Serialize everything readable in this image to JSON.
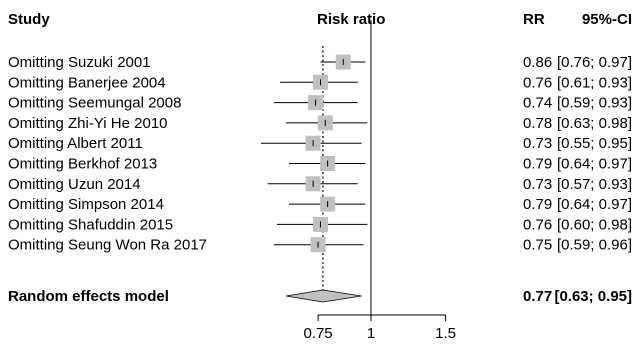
{
  "chart_data": {
    "type": "forest",
    "headers": {
      "study": "Study",
      "effect": "Risk ratio",
      "rr": "RR",
      "ci": "95%-CI"
    },
    "studies": [
      {
        "label": "Omitting Suzuki 2001",
        "rr": 0.86,
        "lower": 0.76,
        "upper": 0.97,
        "rr_text": "0.86",
        "ci_text": "[0.76; 0.97]"
      },
      {
        "label": "Omitting Banerjee 2004",
        "rr": 0.76,
        "lower": 0.61,
        "upper": 0.93,
        "rr_text": "0.76",
        "ci_text": "[0.61; 0.93]"
      },
      {
        "label": "Omitting Seemungal 2008",
        "rr": 0.74,
        "lower": 0.59,
        "upper": 0.93,
        "rr_text": "0.74",
        "ci_text": "[0.59; 0.93]"
      },
      {
        "label": "Omitting Zhi-Yi He 2010",
        "rr": 0.78,
        "lower": 0.63,
        "upper": 0.98,
        "rr_text": "0.78",
        "ci_text": "[0.63; 0.98]"
      },
      {
        "label": "Omitting Albert 2011",
        "rr": 0.73,
        "lower": 0.55,
        "upper": 0.95,
        "rr_text": "0.73",
        "ci_text": "[0.55; 0.95]"
      },
      {
        "label": "Omitting Berkhof 2013",
        "rr": 0.79,
        "lower": 0.64,
        "upper": 0.97,
        "rr_text": "0.79",
        "ci_text": "[0.64; 0.97]"
      },
      {
        "label": "Omitting Uzun 2014",
        "rr": 0.73,
        "lower": 0.57,
        "upper": 0.93,
        "rr_text": "0.73",
        "ci_text": "[0.57; 0.93]"
      },
      {
        "label": "Omitting Simpson 2014",
        "rr": 0.79,
        "lower": 0.64,
        "upper": 0.97,
        "rr_text": "0.79",
        "ci_text": "[0.64; 0.97]"
      },
      {
        "label": "Omitting Shafuddin 2015",
        "rr": 0.76,
        "lower": 0.6,
        "upper": 0.98,
        "rr_text": "0.76",
        "ci_text": "[0.60; 0.98]"
      },
      {
        "label": "Omitting Seung Won Ra 2017",
        "rr": 0.75,
        "lower": 0.59,
        "upper": 0.96,
        "rr_text": "0.75",
        "ci_text": "[0.59; 0.96]"
      }
    ],
    "pooled": {
      "label": "Random effects model",
      "rr": 0.77,
      "lower": 0.63,
      "upper": 0.95,
      "rr_text": "0.77",
      "ci_text": "[0.63; 0.95]"
    },
    "x_axis": {
      "scale": "log",
      "ticks": [
        0.75,
        1,
        1.5
      ],
      "tick_labels": [
        "0.75",
        "1",
        "1.5"
      ],
      "null_line": 1,
      "reference_line": 0.77
    },
    "colors": {
      "square": "#c0c0c0",
      "diamond": "#c0c0c0",
      "line": "#000000"
    }
  }
}
